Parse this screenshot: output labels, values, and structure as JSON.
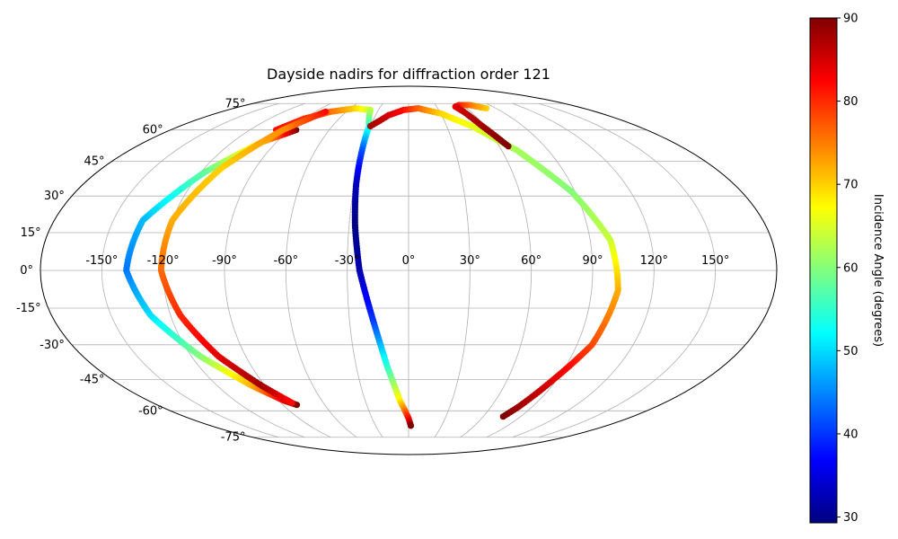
{
  "chart_data": {
    "type": "scatter",
    "projection": "mollweide",
    "title": "Dayside nadirs for diffraction order 121",
    "xlabel": "",
    "ylabel": "",
    "lon_ticks": [
      -150,
      -120,
      -90,
      -60,
      -30,
      0,
      30,
      60,
      90,
      120,
      150
    ],
    "lat_ticks": [
      -75,
      -60,
      -45,
      -30,
      -15,
      0,
      15,
      30,
      45,
      60,
      75
    ],
    "lon_tick_labels": [
      "-150°",
      "-120°",
      "-90°",
      "-60°",
      "-30°",
      "0°",
      "30°",
      "60°",
      "90°",
      "120°",
      "150°"
    ],
    "lat_tick_labels": [
      "-75°",
      "-60°",
      "-45°",
      "-30°",
      "-15°",
      "0°",
      "15°",
      "30°",
      "45°",
      "60°",
      "75°"
    ],
    "grid": true,
    "colormap": "jet",
    "colorbar": {
      "label": "Incidence Angle (degrees)",
      "range": [
        29.3,
        90
      ],
      "ticks": [
        30,
        40,
        50,
        60,
        70,
        80,
        90
      ],
      "tick_labels": [
        "30",
        "40",
        "50",
        "60",
        "70",
        "80",
        "90"
      ],
      "placement": "right"
    },
    "series": [
      {
        "color_by": "incidence_angle",
        "points": [
          {
            "lon": -100,
            "lat": 60,
            "incidence": 82
          },
          {
            "lon": -90,
            "lat": 66,
            "incidence": 80
          },
          {
            "lon": -75,
            "lat": 70,
            "incidence": 76
          },
          {
            "lon": -55,
            "lat": 72,
            "incidence": 70
          },
          {
            "lon": -38,
            "lat": 71,
            "incidence": 64
          },
          {
            "lon": -31,
            "lat": 62,
            "incidence": 55
          },
          {
            "lon": -30,
            "lat": 50,
            "incidence": 42
          },
          {
            "lon": -29,
            "lat": 35,
            "incidence": 33
          },
          {
            "lon": -27,
            "lat": 18,
            "incidence": 29.5
          },
          {
            "lon": -24,
            "lat": 0,
            "incidence": 32
          },
          {
            "lon": -18,
            "lat": -20,
            "incidence": 40
          },
          {
            "lon": -12,
            "lat": -40,
            "incidence": 55
          },
          {
            "lon": -6,
            "lat": -55,
            "incidence": 68
          },
          {
            "lon": 0,
            "lat": -64,
            "incidence": 82
          },
          {
            "lon": 2,
            "lat": -68,
            "incidence": 90
          }
        ]
      },
      {
        "color_by": "incidence_angle",
        "points": [
          {
            "lon": -85,
            "lat": 60,
            "incidence": 90
          },
          {
            "lon": -100,
            "lat": 54,
            "incidence": 70
          },
          {
            "lon": -118,
            "lat": 40,
            "incidence": 58
          },
          {
            "lon": -135,
            "lat": 20,
            "incidence": 48
          },
          {
            "lon": -138,
            "lat": 0,
            "incidence": 44
          },
          {
            "lon": -130,
            "lat": -18,
            "incidence": 50
          },
          {
            "lon": -115,
            "lat": -35,
            "incidence": 60
          },
          {
            "lon": -98,
            "lat": -48,
            "incidence": 72
          },
          {
            "lon": -86,
            "lat": -55,
            "incidence": 84
          },
          {
            "lon": -80,
            "lat": -57,
            "incidence": 90
          }
        ]
      },
      {
        "color_by": "incidence_angle",
        "points": [
          {
            "lon": -80,
            "lat": 70,
            "incidence": 82
          },
          {
            "lon": -95,
            "lat": 60,
            "incidence": 74
          },
          {
            "lon": -110,
            "lat": 42,
            "incidence": 70
          },
          {
            "lon": -120,
            "lat": 20,
            "incidence": 72
          },
          {
            "lon": -121,
            "lat": 0,
            "incidence": 76
          },
          {
            "lon": -115,
            "lat": -18,
            "incidence": 80
          },
          {
            "lon": -105,
            "lat": -35,
            "incidence": 84
          },
          {
            "lon": -92,
            "lat": -48,
            "incidence": 88
          },
          {
            "lon": -82,
            "lat": -56,
            "incidence": 82
          }
        ]
      },
      {
        "color_by": "incidence_angle",
        "points": [
          {
            "lon": -30,
            "lat": 62,
            "incidence": 88
          },
          {
            "lon": -18,
            "lat": 68,
            "incidence": 85
          },
          {
            "lon": -5,
            "lat": 71,
            "incidence": 82
          },
          {
            "lon": 10,
            "lat": 72,
            "incidence": 77
          },
          {
            "lon": 30,
            "lat": 69,
            "incidence": 70
          },
          {
            "lon": 50,
            "lat": 62,
            "incidence": 66
          },
          {
            "lon": 70,
            "lat": 50,
            "incidence": 62
          },
          {
            "lon": 88,
            "lat": 32,
            "incidence": 60
          },
          {
            "lon": 100,
            "lat": 12,
            "incidence": 64
          },
          {
            "lon": 103,
            "lat": -8,
            "incidence": 72
          },
          {
            "lon": 98,
            "lat": -30,
            "incidence": 78
          },
          {
            "lon": 88,
            "lat": -45,
            "incidence": 84
          },
          {
            "lon": 80,
            "lat": -58,
            "incidence": 88
          },
          {
            "lon": 76,
            "lat": -63,
            "incidence": 90
          }
        ]
      },
      {
        "color_by": "incidence_angle",
        "points": [
          {
            "lon": 80,
            "lat": 72,
            "incidence": 70
          },
          {
            "lon": 68,
            "lat": 74,
            "incidence": 75
          },
          {
            "lon": 56,
            "lat": 74,
            "incidence": 80
          },
          {
            "lon": 50,
            "lat": 73,
            "incidence": 84
          },
          {
            "lon": 53,
            "lat": 70,
            "incidence": 86
          },
          {
            "lon": 58,
            "lat": 62,
            "incidence": 88
          },
          {
            "lon": 66,
            "lat": 52,
            "incidence": 90
          }
        ]
      }
    ]
  }
}
